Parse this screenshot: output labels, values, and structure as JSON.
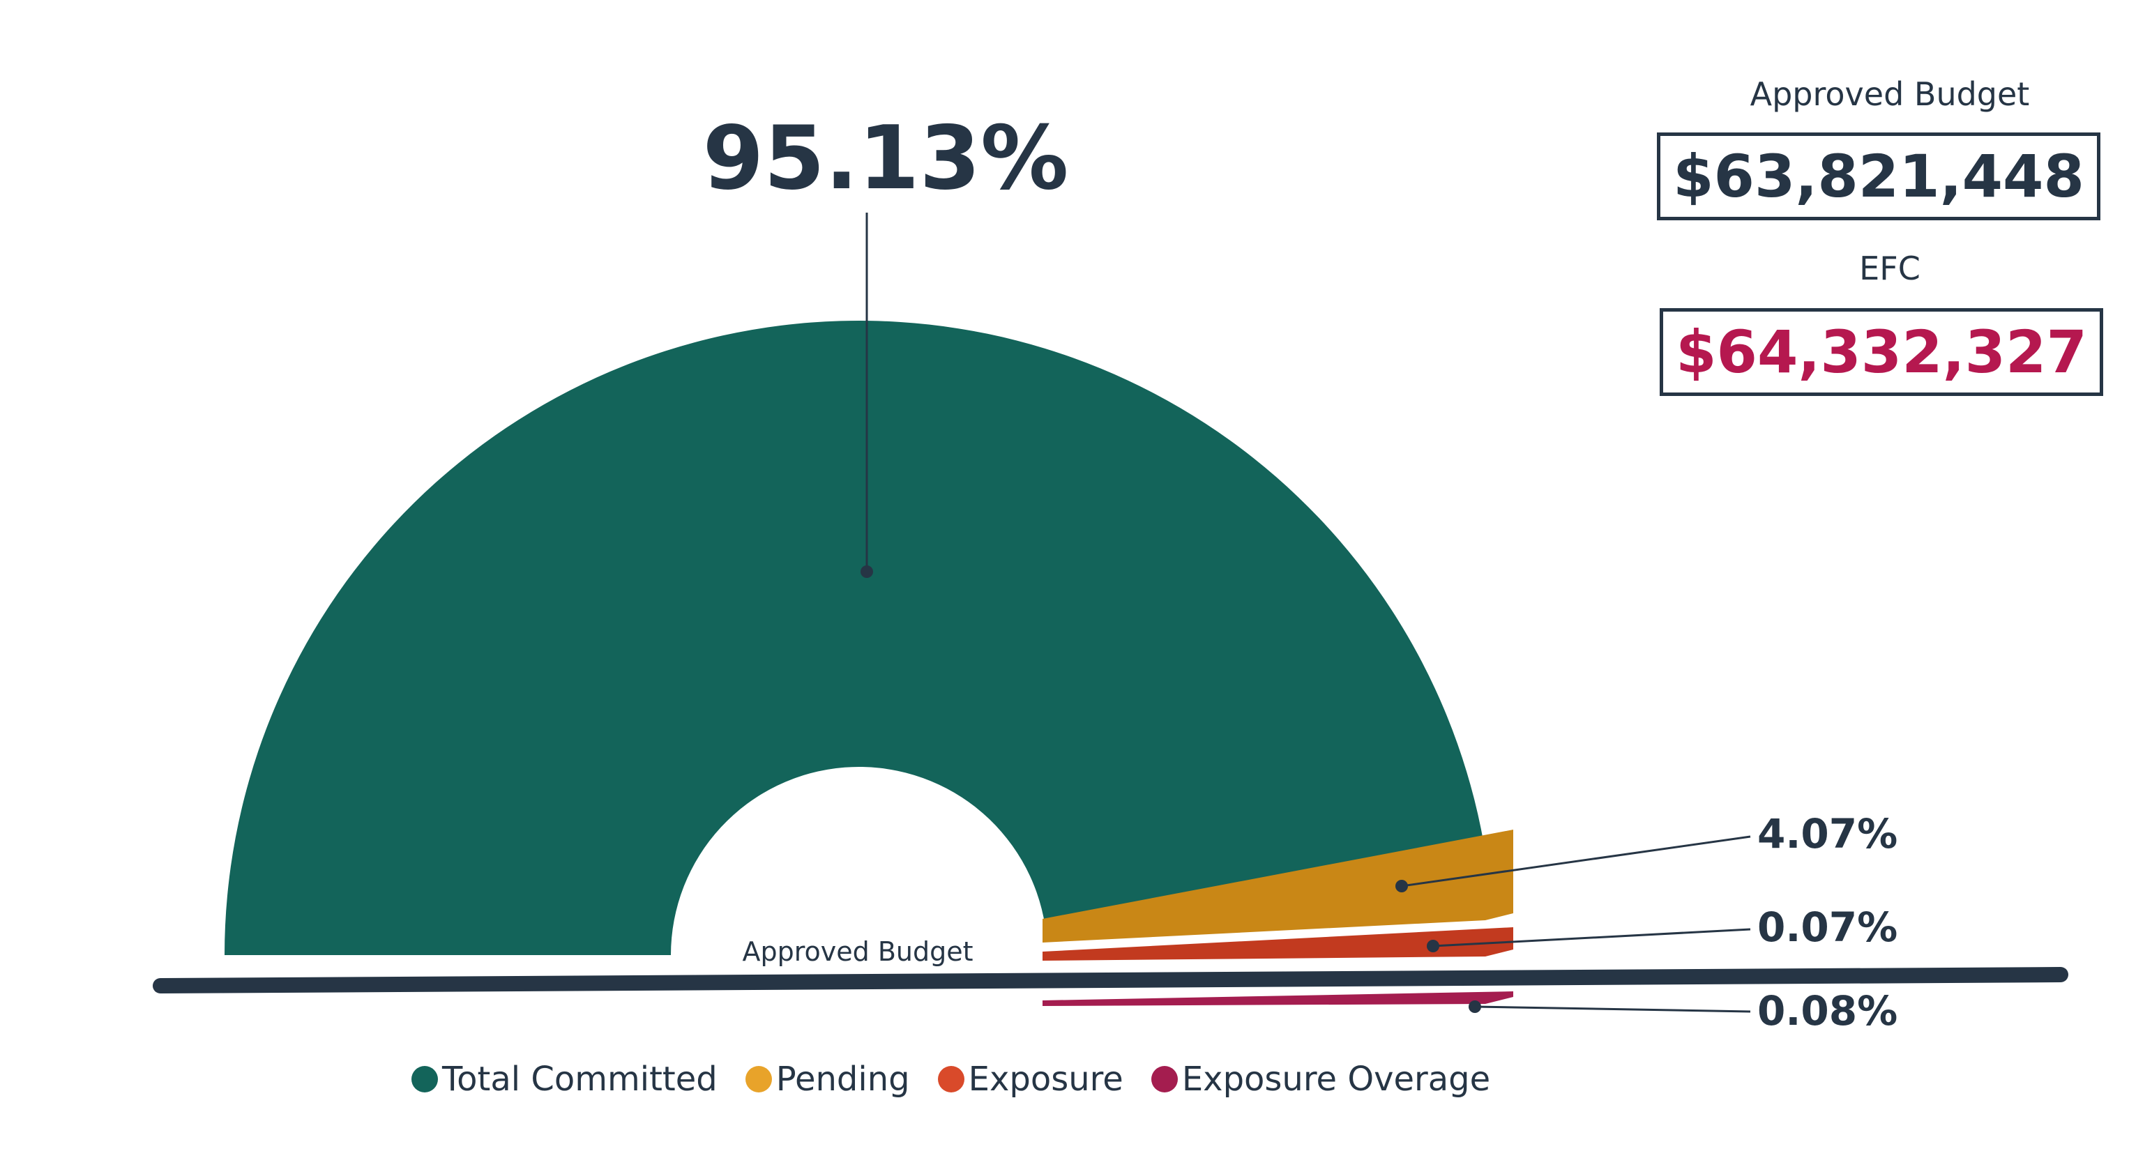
{
  "chart_data": {
    "type": "pie",
    "variant": "half-donut gauge",
    "categories": [
      "Total Committed",
      "Pending",
      "Exposure",
      "Exposure Overage"
    ],
    "values": [
      95.13,
      4.07,
      0.07,
      0.08
    ],
    "value_labels": [
      "95.13%",
      "4.07%",
      "0.07%",
      "0.08%"
    ],
    "colors": [
      "#13645a",
      "#c98716",
      "#c23a1f",
      "#a41d4f"
    ],
    "legend_colors": [
      "#13645a",
      "#e8a32a",
      "#d94a2a",
      "#a41d4f"
    ],
    "baseline_label": "Approved Budget",
    "legend_position": "bottom"
  },
  "summary": {
    "approved_budget_label": "Approved Budget",
    "approved_budget_value": "$63,821,448",
    "efc_label": "EFC",
    "efc_value": "$64,332,327",
    "efc_color": "#b5184f"
  }
}
